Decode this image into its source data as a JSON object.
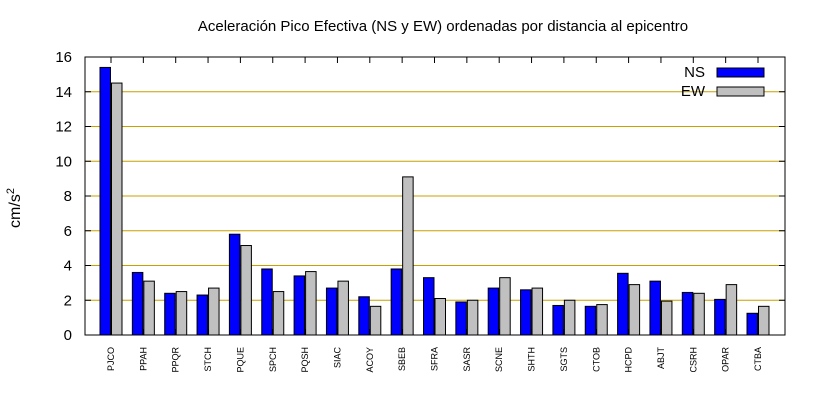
{
  "chart_data": {
    "type": "bar",
    "title": "Aceleración Pico Efectiva (NS y EW) ordenadas por distancia al epicentro",
    "ylabel": "cm/s",
    "ylabel_sup": "2",
    "xlabel": "",
    "ylim": [
      0,
      16
    ],
    "yticks": [
      0,
      2,
      4,
      6,
      8,
      10,
      12,
      14,
      16
    ],
    "grid": "horizontal",
    "legend_position": "top-right",
    "categories": [
      "PJCO",
      "PPAH",
      "PPQR",
      "STCH",
      "PQUE",
      "SPCH",
      "PQSH",
      "SIAC",
      "ACOY",
      "SBEB",
      "SFRA",
      "SASR",
      "SCNE",
      "SHTH",
      "SGTS",
      "CTOB",
      "HCPD",
      "ABJT",
      "CSRH",
      "OPAR",
      "CTBA"
    ],
    "series": [
      {
        "name": "NS",
        "color": "#0000ff",
        "values": [
          15.4,
          3.6,
          2.4,
          2.3,
          5.8,
          3.8,
          3.4,
          2.7,
          2.2,
          3.8,
          3.3,
          1.9,
          2.7,
          2.6,
          1.7,
          1.65,
          3.55,
          3.1,
          2.45,
          2.05,
          1.25
        ]
      },
      {
        "name": "EW",
        "color": "#c0c0c0",
        "values": [
          14.5,
          3.1,
          2.5,
          2.7,
          5.15,
          2.5,
          3.65,
          3.1,
          1.65,
          9.1,
          2.1,
          2.0,
          3.3,
          2.7,
          2.0,
          1.75,
          2.9,
          1.95,
          2.4,
          2.9,
          1.65
        ]
      }
    ]
  }
}
